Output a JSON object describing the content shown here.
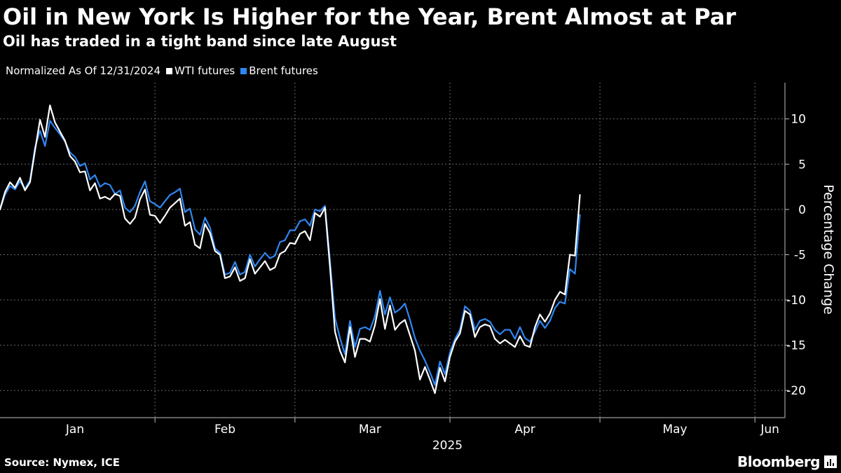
{
  "title": "Oil in New York Is Higher for the Year, Brent Almost at Par",
  "subtitle": "Oil has traded in a tight band since late August",
  "legend": {
    "note": "Normalized As Of 12/31/2024",
    "items": [
      {
        "label": "WTI futures",
        "color": "#ffffff"
      },
      {
        "label": "Brent futures",
        "color": "#2f86f0"
      }
    ]
  },
  "footer": {
    "source": "Source: Nymex, ICE",
    "brand": "Bloomberg"
  },
  "chart_data": {
    "type": "line",
    "ylabel": "Percentage Change",
    "ylim": [
      -23,
      14
    ],
    "y_ticks": [
      10,
      5,
      0,
      -5,
      -10,
      -15,
      -20
    ],
    "y_tick_labels": [
      "10",
      "5",
      "0",
      "-5",
      "-10",
      "-15",
      "-20"
    ],
    "x_domain": [
      "2024-12-31",
      "2025-06-06"
    ],
    "x_ticks": [
      {
        "label": "Jan",
        "date": "2025-01-15"
      },
      {
        "label": "Feb",
        "date": "2025-02-14"
      },
      {
        "label": "Mar",
        "date": "2025-03-15"
      },
      {
        "label": "Apr",
        "date": "2025-04-15"
      },
      {
        "label": "May",
        "date": "2025-05-15"
      },
      {
        "label": "Jun",
        "date": "2025-06-03"
      }
    ],
    "x_gridlines": [
      "2025-01-31",
      "2025-02-28",
      "2025-03-31",
      "2025-04-30",
      "2025-05-31"
    ],
    "year_label": "2025",
    "grid": true,
    "series": [
      {
        "name": "WTI futures",
        "color": "#ffffff",
        "points": [
          [
            "2024-12-31",
            0
          ],
          [
            "2025-01-01",
            1.9
          ],
          [
            "2025-01-02",
            3.0
          ],
          [
            "2025-01-03",
            2.4
          ],
          [
            "2025-01-04",
            3.5
          ],
          [
            "2025-01-05",
            2.1
          ],
          [
            "2025-01-06",
            3.0
          ],
          [
            "2025-01-07",
            6.5
          ],
          [
            "2025-01-08",
            9.9
          ],
          [
            "2025-01-09",
            8.0
          ],
          [
            "2025-01-10",
            11.5
          ],
          [
            "2025-01-11",
            9.6
          ],
          [
            "2025-01-12",
            8.6
          ],
          [
            "2025-01-13",
            7.6
          ],
          [
            "2025-01-14",
            5.9
          ],
          [
            "2025-01-15",
            5.3
          ],
          [
            "2025-01-16",
            4.1
          ],
          [
            "2025-01-17",
            4.2
          ],
          [
            "2025-01-18",
            2.1
          ],
          [
            "2025-01-19",
            2.9
          ],
          [
            "2025-01-20",
            1.2
          ],
          [
            "2025-01-21",
            1.4
          ],
          [
            "2025-01-22",
            1.1
          ],
          [
            "2025-01-23",
            1.7
          ],
          [
            "2025-01-24",
            1.5
          ],
          [
            "2025-01-25",
            -1.0
          ],
          [
            "2025-01-26",
            -1.6
          ],
          [
            "2025-01-27",
            -0.9
          ],
          [
            "2025-01-28",
            1.1
          ],
          [
            "2025-01-29",
            2.2
          ],
          [
            "2025-01-30",
            -0.6
          ],
          [
            "2025-01-31",
            -0.7
          ],
          [
            "2025-02-01",
            -1.5
          ],
          [
            "2025-02-02",
            -0.7
          ],
          [
            "2025-02-03",
            0.2
          ],
          [
            "2025-02-04",
            0.7
          ],
          [
            "2025-02-05",
            1.2
          ],
          [
            "2025-02-06",
            -1.8
          ],
          [
            "2025-02-07",
            -1.4
          ],
          [
            "2025-02-08",
            -3.9
          ],
          [
            "2025-02-09",
            -4.3
          ],
          [
            "2025-02-10",
            -1.6
          ],
          [
            "2025-02-11",
            -2.6
          ],
          [
            "2025-02-12",
            -4.6
          ],
          [
            "2025-02-13",
            -5.0
          ],
          [
            "2025-02-14",
            -7.6
          ],
          [
            "2025-02-15",
            -7.4
          ],
          [
            "2025-02-16",
            -6.4
          ],
          [
            "2025-02-17",
            -7.9
          ],
          [
            "2025-02-18",
            -7.6
          ],
          [
            "2025-02-19",
            -5.5
          ],
          [
            "2025-02-20",
            -7.1
          ],
          [
            "2025-02-21",
            -6.4
          ],
          [
            "2025-02-22",
            -5.7
          ],
          [
            "2025-02-23",
            -6.7
          ],
          [
            "2025-02-24",
            -6.4
          ],
          [
            "2025-02-25",
            -4.9
          ],
          [
            "2025-02-26",
            -4.6
          ],
          [
            "2025-02-27",
            -3.7
          ],
          [
            "2025-02-28",
            -3.8
          ],
          [
            "2025-03-01",
            -2.7
          ],
          [
            "2025-03-02",
            -2.4
          ],
          [
            "2025-03-03",
            -3.4
          ],
          [
            "2025-03-04",
            -0.4
          ],
          [
            "2025-03-05",
            -0.8
          ],
          [
            "2025-03-06",
            0.2
          ],
          [
            "2025-03-07",
            -6.3
          ],
          [
            "2025-03-08",
            -13.5
          ],
          [
            "2025-03-09",
            -15.6
          ],
          [
            "2025-03-10",
            -16.9
          ],
          [
            "2025-03-11",
            -13.0
          ],
          [
            "2025-03-12",
            -16.3
          ],
          [
            "2025-03-13",
            -14.3
          ],
          [
            "2025-03-14",
            -14.3
          ],
          [
            "2025-03-15",
            -14.6
          ],
          [
            "2025-03-16",
            -12.8
          ],
          [
            "2025-03-17",
            -9.9
          ],
          [
            "2025-03-18",
            -13.2
          ],
          [
            "2025-03-19",
            -10.6
          ],
          [
            "2025-03-20",
            -13.3
          ],
          [
            "2025-03-21",
            -12.6
          ],
          [
            "2025-03-22",
            -12.2
          ],
          [
            "2025-03-23",
            -13.9
          ],
          [
            "2025-03-24",
            -15.6
          ],
          [
            "2025-03-25",
            -18.8
          ],
          [
            "2025-03-26",
            -17.4
          ],
          [
            "2025-03-27",
            -18.8
          ],
          [
            "2025-03-28",
            -20.3
          ],
          [
            "2025-03-29",
            -17.5
          ],
          [
            "2025-03-30",
            -19.0
          ],
          [
            "2025-03-31",
            -16.3
          ],
          [
            "2025-04-01",
            -14.6
          ],
          [
            "2025-04-02",
            -13.7
          ],
          [
            "2025-04-03",
            -11.2
          ],
          [
            "2025-04-04",
            -11.6
          ],
          [
            "2025-04-05",
            -14.1
          ],
          [
            "2025-04-06",
            -13.0
          ],
          [
            "2025-04-07",
            -12.7
          ],
          [
            "2025-04-08",
            -12.9
          ],
          [
            "2025-04-09",
            -14.3
          ],
          [
            "2025-04-10",
            -14.8
          ],
          [
            "2025-04-11",
            -14.4
          ],
          [
            "2025-04-12",
            -14.8
          ],
          [
            "2025-04-13",
            -15.2
          ],
          [
            "2025-04-14",
            -14.0
          ],
          [
            "2025-04-15",
            -15.0
          ],
          [
            "2025-04-16",
            -15.2
          ],
          [
            "2025-04-17",
            -13.0
          ],
          [
            "2025-04-18",
            -11.6
          ],
          [
            "2025-04-19",
            -12.4
          ],
          [
            "2025-04-20",
            -11.5
          ],
          [
            "2025-04-21",
            -10.0
          ],
          [
            "2025-04-22",
            -9.1
          ],
          [
            "2025-04-23",
            -9.4
          ],
          [
            "2025-04-24",
            -5.0
          ],
          [
            "2025-04-25",
            -5.1
          ],
          [
            "2025-04-26",
            1.6
          ]
        ]
      },
      {
        "name": "Brent futures",
        "color": "#2f86f0",
        "points": [
          [
            "2024-12-31",
            0
          ],
          [
            "2025-01-01",
            1.6
          ],
          [
            "2025-01-02",
            2.6
          ],
          [
            "2025-01-03",
            2.2
          ],
          [
            "2025-01-04",
            3.1
          ],
          [
            "2025-01-05",
            2.3
          ],
          [
            "2025-01-06",
            3.2
          ],
          [
            "2025-01-07",
            6.8
          ],
          [
            "2025-01-08",
            8.7
          ],
          [
            "2025-01-09",
            7.0
          ],
          [
            "2025-01-10",
            9.8
          ],
          [
            "2025-01-11",
            9.0
          ],
          [
            "2025-01-12",
            8.3
          ],
          [
            "2025-01-13",
            7.5
          ],
          [
            "2025-01-14",
            6.3
          ],
          [
            "2025-01-15",
            5.8
          ],
          [
            "2025-01-16",
            4.8
          ],
          [
            "2025-01-17",
            5.1
          ],
          [
            "2025-01-18",
            3.3
          ],
          [
            "2025-01-19",
            3.8
          ],
          [
            "2025-01-20",
            2.5
          ],
          [
            "2025-01-21",
            2.9
          ],
          [
            "2025-01-22",
            2.7
          ],
          [
            "2025-01-23",
            1.7
          ],
          [
            "2025-01-24",
            2.1
          ],
          [
            "2025-01-25",
            0.2
          ],
          [
            "2025-01-26",
            -0.3
          ],
          [
            "2025-01-27",
            0.4
          ],
          [
            "2025-01-28",
            1.9
          ],
          [
            "2025-01-29",
            3.1
          ],
          [
            "2025-01-30",
            0.9
          ],
          [
            "2025-01-31",
            0.6
          ],
          [
            "2025-02-01",
            0.2
          ],
          [
            "2025-02-02",
            0.9
          ],
          [
            "2025-02-03",
            1.6
          ],
          [
            "2025-02-04",
            1.9
          ],
          [
            "2025-02-05",
            2.3
          ],
          [
            "2025-02-06",
            -0.3
          ],
          [
            "2025-02-07",
            0.1
          ],
          [
            "2025-02-08",
            -2.2
          ],
          [
            "2025-02-09",
            -2.8
          ],
          [
            "2025-02-10",
            -0.9
          ],
          [
            "2025-02-11",
            -2.0
          ],
          [
            "2025-02-12",
            -4.3
          ],
          [
            "2025-02-13",
            -4.8
          ],
          [
            "2025-02-14",
            -7.2
          ],
          [
            "2025-02-15",
            -7.0
          ],
          [
            "2025-02-16",
            -5.8
          ],
          [
            "2025-02-17",
            -7.2
          ],
          [
            "2025-02-18",
            -6.9
          ],
          [
            "2025-02-19",
            -5.0
          ],
          [
            "2025-02-20",
            -6.3
          ],
          [
            "2025-02-21",
            -5.5
          ],
          [
            "2025-02-22",
            -4.8
          ],
          [
            "2025-02-23",
            -5.4
          ],
          [
            "2025-02-24",
            -5.1
          ],
          [
            "2025-02-25",
            -3.6
          ],
          [
            "2025-02-26",
            -3.4
          ],
          [
            "2025-02-27",
            -2.3
          ],
          [
            "2025-02-28",
            -2.3
          ],
          [
            "2025-03-01",
            -1.3
          ],
          [
            "2025-03-02",
            -1.1
          ],
          [
            "2025-03-03",
            -1.8
          ],
          [
            "2025-03-04",
            0.0
          ],
          [
            "2025-03-05",
            -0.2
          ],
          [
            "2025-03-06",
            0.4
          ],
          [
            "2025-03-07",
            -5.6
          ],
          [
            "2025-03-08",
            -12.0
          ],
          [
            "2025-03-09",
            -14.2
          ],
          [
            "2025-03-10",
            -16.0
          ],
          [
            "2025-03-11",
            -12.3
          ],
          [
            "2025-03-12",
            -15.2
          ],
          [
            "2025-03-13",
            -13.2
          ],
          [
            "2025-03-14",
            -13.0
          ],
          [
            "2025-03-15",
            -13.3
          ],
          [
            "2025-03-16",
            -11.8
          ],
          [
            "2025-03-17",
            -9.0
          ],
          [
            "2025-03-18",
            -11.6
          ],
          [
            "2025-03-19",
            -9.7
          ],
          [
            "2025-03-20",
            -11.4
          ],
          [
            "2025-03-21",
            -11.0
          ],
          [
            "2025-03-22",
            -10.4
          ],
          [
            "2025-03-23",
            -12.2
          ],
          [
            "2025-03-24",
            -14.2
          ],
          [
            "2025-03-25",
            -15.6
          ],
          [
            "2025-03-26",
            -16.7
          ],
          [
            "2025-03-27",
            -18.0
          ],
          [
            "2025-03-28",
            -19.4
          ],
          [
            "2025-03-29",
            -16.8
          ],
          [
            "2025-03-30",
            -18.2
          ],
          [
            "2025-03-31",
            -15.8
          ],
          [
            "2025-04-01",
            -14.3
          ],
          [
            "2025-04-02",
            -13.3
          ],
          [
            "2025-04-03",
            -10.7
          ],
          [
            "2025-04-04",
            -11.2
          ],
          [
            "2025-04-05",
            -13.3
          ],
          [
            "2025-04-06",
            -12.3
          ],
          [
            "2025-04-07",
            -12.1
          ],
          [
            "2025-04-08",
            -12.4
          ],
          [
            "2025-04-09",
            -13.3
          ],
          [
            "2025-04-10",
            -13.8
          ],
          [
            "2025-04-11",
            -13.3
          ],
          [
            "2025-04-12",
            -13.3
          ],
          [
            "2025-04-13",
            -14.3
          ],
          [
            "2025-04-14",
            -13.0
          ],
          [
            "2025-04-15",
            -14.2
          ],
          [
            "2025-04-16",
            -14.6
          ],
          [
            "2025-04-17",
            -13.5
          ],
          [
            "2025-04-18",
            -12.3
          ],
          [
            "2025-04-19",
            -13.1
          ],
          [
            "2025-04-20",
            -12.3
          ],
          [
            "2025-04-21",
            -10.9
          ],
          [
            "2025-04-22",
            -10.2
          ],
          [
            "2025-04-23",
            -10.4
          ],
          [
            "2025-04-24",
            -6.6
          ],
          [
            "2025-04-25",
            -7.1
          ],
          [
            "2025-04-26",
            -0.6
          ]
        ]
      }
    ]
  }
}
